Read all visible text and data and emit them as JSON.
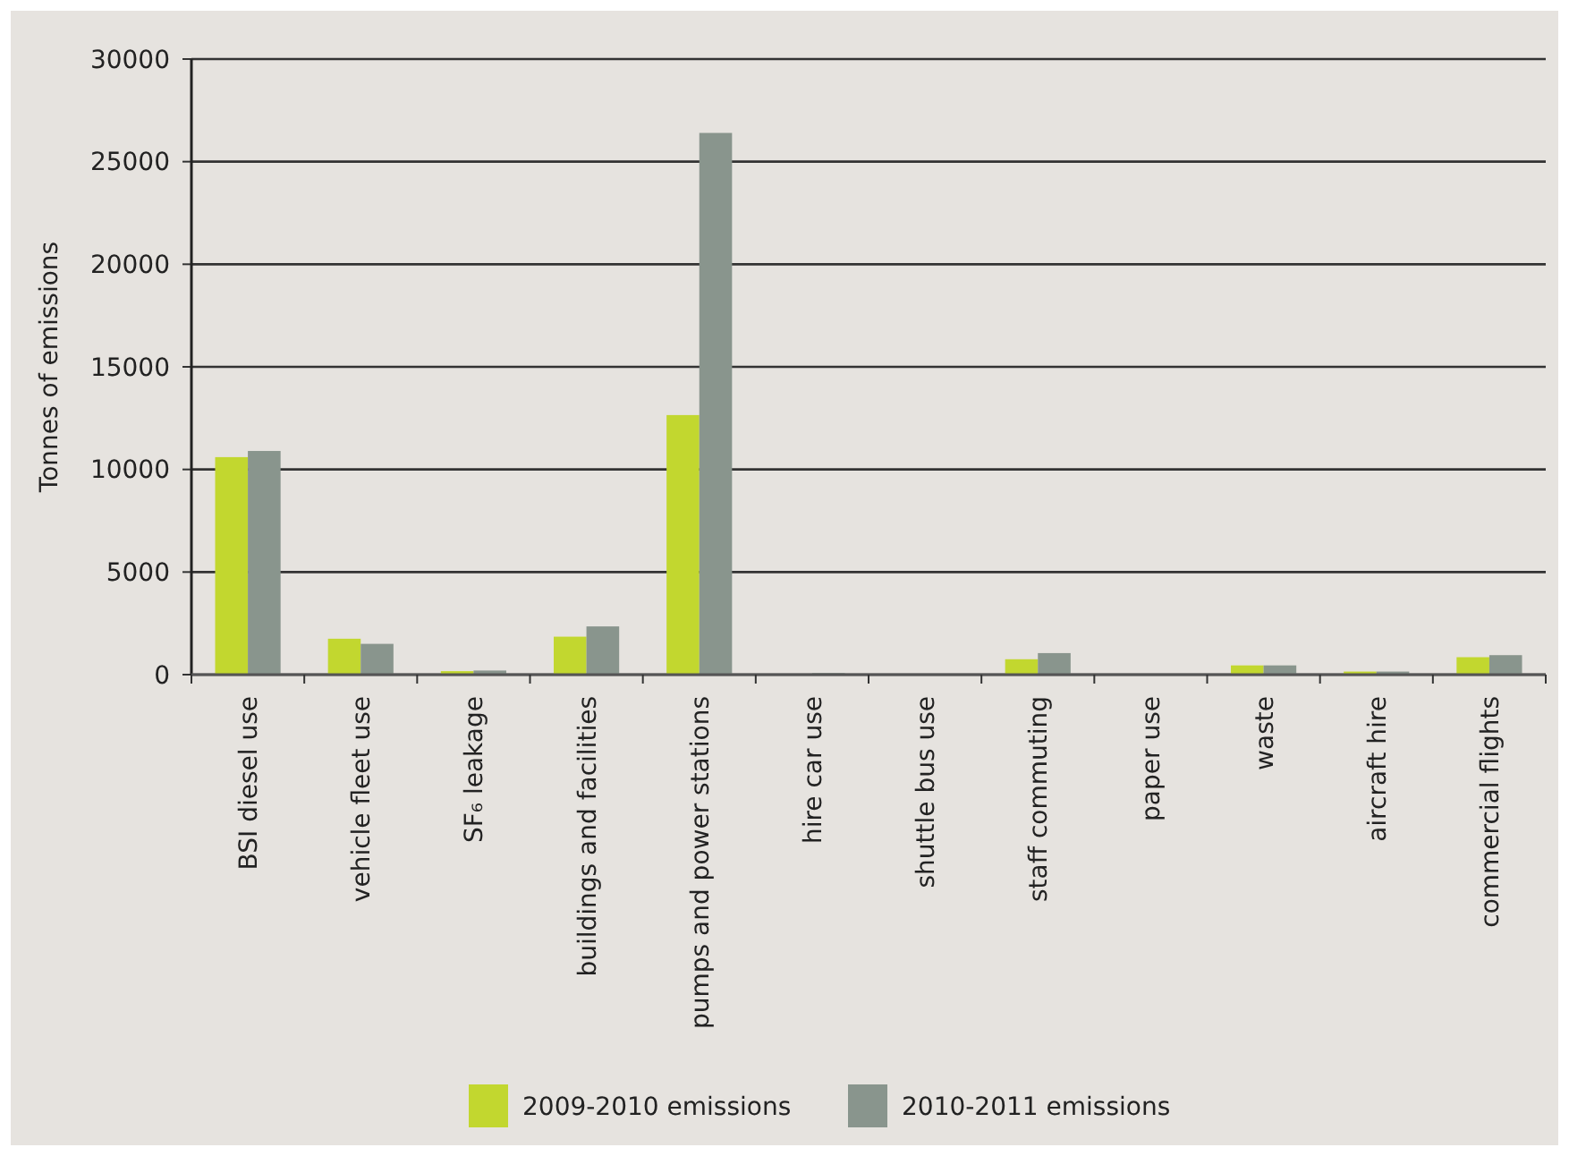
{
  "chart_data": {
    "type": "bar",
    "ylabel": "Tonnes of emissions",
    "categories": [
      "BSI diesel use",
      "vehicle fleet use",
      "SF₆ leakage",
      "buildings and facilities",
      "pumps and power stations",
      "hire car use",
      "shuttle bus use",
      "staff commuting",
      "paper use",
      "waste",
      "aircraft hire",
      "commercial flights"
    ],
    "series": [
      {
        "name": "2009-2010 emissions",
        "color": "#c2d72f",
        "values": [
          10600,
          1750,
          170,
          1850,
          12650,
          0,
          0,
          750,
          0,
          450,
          150,
          850
        ]
      },
      {
        "name": "2010-2011 emissions",
        "color": "#89958d",
        "values": [
          10900,
          1500,
          200,
          2350,
          26400,
          80,
          0,
          1050,
          0,
          450,
          150,
          950
        ]
      }
    ],
    "ylim": [
      0,
      30000
    ],
    "yticks": [
      0,
      5000,
      10000,
      15000,
      20000,
      25000,
      30000
    ],
    "grid": "y",
    "legend": "bottom"
  }
}
